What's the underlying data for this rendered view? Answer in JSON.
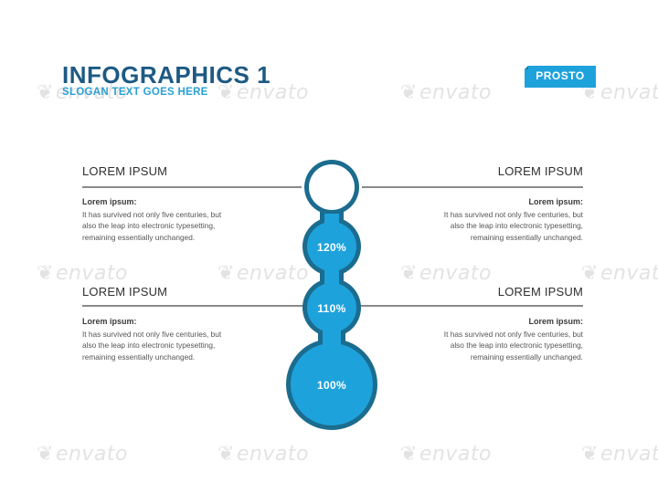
{
  "header": {
    "title": "INFOGRAPHICS 1",
    "slogan": "SLOGAN TEXT GOES HERE"
  },
  "brand": {
    "label": "PROSTO"
  },
  "watermark": {
    "text": "envato"
  },
  "sections": {
    "top_left": {
      "heading": "LOREM IPSUM",
      "label": "Lorem ipsum:",
      "lines": [
        "It has survived not only five centuries, but",
        "also the leap into electronic typesetting,",
        "remaining essentially unchanged."
      ]
    },
    "top_right": {
      "heading": "LOREM IPSUM",
      "label": "Lorem ipsum:",
      "lines": [
        "It has survived not only five centuries, but",
        "also the leap into electronic typesetting,",
        "remaining essentially unchanged."
      ]
    },
    "bottom_left": {
      "heading": "LOREM IPSUM",
      "label": "Lorem ipsum:",
      "lines": [
        "It has survived not only five centuries, but",
        "also the leap into electronic typesetting,",
        "remaining essentially unchanged."
      ]
    },
    "bottom_right": {
      "heading": "LOREM IPSUM",
      "label": "Lorem ipsum:",
      "lines": [
        "It has survived not only five centuries, but",
        "also the leap into electronic typesetting,",
        "remaining essentially unchanged."
      ]
    }
  },
  "thermometer": {
    "levels": [
      "120%",
      "110%",
      "100%"
    ]
  },
  "colors": {
    "title": "#1d5a84",
    "slogan": "#2aa0d4",
    "fill": "#1ea2dc",
    "outline": "#1b6c8e",
    "brand": "#1ea2dc"
  }
}
